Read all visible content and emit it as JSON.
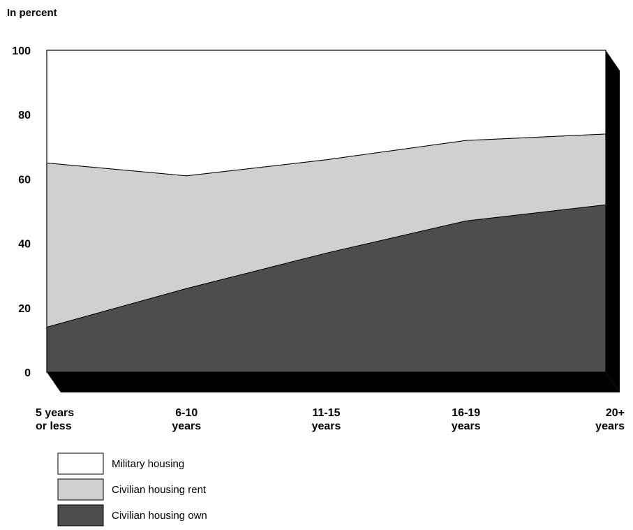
{
  "chart_data": {
    "type": "area",
    "stacked": true,
    "three_d": true,
    "ylabel": "In percent",
    "ylim": [
      0,
      100
    ],
    "yticks": [
      0,
      20,
      40,
      60,
      80,
      100
    ],
    "categories": [
      [
        "5 years",
        "or less"
      ],
      [
        "6-10",
        "years"
      ],
      [
        "11-15",
        "years"
      ],
      [
        "16-19",
        "years"
      ],
      [
        "20+",
        "years"
      ]
    ],
    "series": [
      {
        "name": "Civilian housing own",
        "values": [
          14,
          26,
          37,
          47,
          52
        ],
        "color": "#4d4d4d"
      },
      {
        "name": "Civilian  housing rent",
        "values": [
          51,
          35,
          29,
          25,
          22
        ],
        "color": "#d0d0d0"
      },
      {
        "name": "Military housing",
        "values": [
          35,
          39,
          34,
          28,
          26
        ],
        "color": "#ffffff"
      }
    ],
    "legend": {
      "placement": "bottom-left",
      "order": [
        "Military housing",
        "Civilian  housing rent",
        "Civilian housing own"
      ]
    },
    "side_color": "#000000"
  }
}
